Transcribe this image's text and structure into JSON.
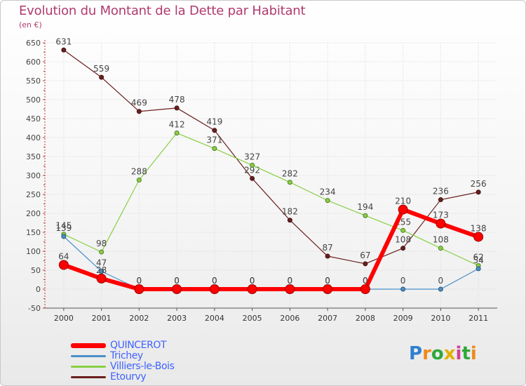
{
  "chart_data": {
    "type": "line",
    "title": "Evolution du Montant de la Dette par Habitant",
    "subtitle": "(en €)",
    "categories": [
      "2000",
      "2001",
      "2002",
      "2003",
      "2004",
      "2005",
      "2006",
      "2007",
      "2008",
      "2009",
      "2010",
      "2011"
    ],
    "ylim": [
      -50,
      650
    ],
    "yticks": [
      -50,
      0,
      50,
      100,
      150,
      200,
      250,
      300,
      350,
      400,
      450,
      500,
      550,
      600,
      650
    ],
    "grid": true,
    "legend_position": "bottom-left",
    "series": [
      {
        "name": "Etourvy",
        "color": "#6b1f1f",
        "values": [
          631,
          559,
          469,
          478,
          419,
          292,
          182,
          87,
          67,
          108,
          236,
          256
        ]
      },
      {
        "name": "Villiers-le-Bois",
        "color": "#88d044",
        "values": [
          145,
          98,
          288,
          412,
          371,
          327,
          282,
          234,
          194,
          155,
          108,
          62
        ]
      },
      {
        "name": "Trichey",
        "color": "#4a90c8",
        "values": [
          139,
          47,
          0,
          0,
          0,
          0,
          0,
          0,
          0,
          0,
          0,
          54
        ]
      },
      {
        "name": "QUINCEROT",
        "color": "#ff0000",
        "values": [
          64,
          28,
          0,
          0,
          0,
          0,
          0,
          0,
          0,
          210,
          173,
          138
        ]
      }
    ],
    "legend_order": [
      "QUINCEROT",
      "Trichey",
      "Villiers-le-Bois",
      "Etourvy"
    ]
  },
  "logo": {
    "text": "Proxiti",
    "letter_colors": [
      "#2f7fd0",
      "#f08a1c",
      "#2fa83a",
      "#e0b000",
      "#d23f95",
      "#2fa83a",
      "#f08a1c"
    ]
  }
}
